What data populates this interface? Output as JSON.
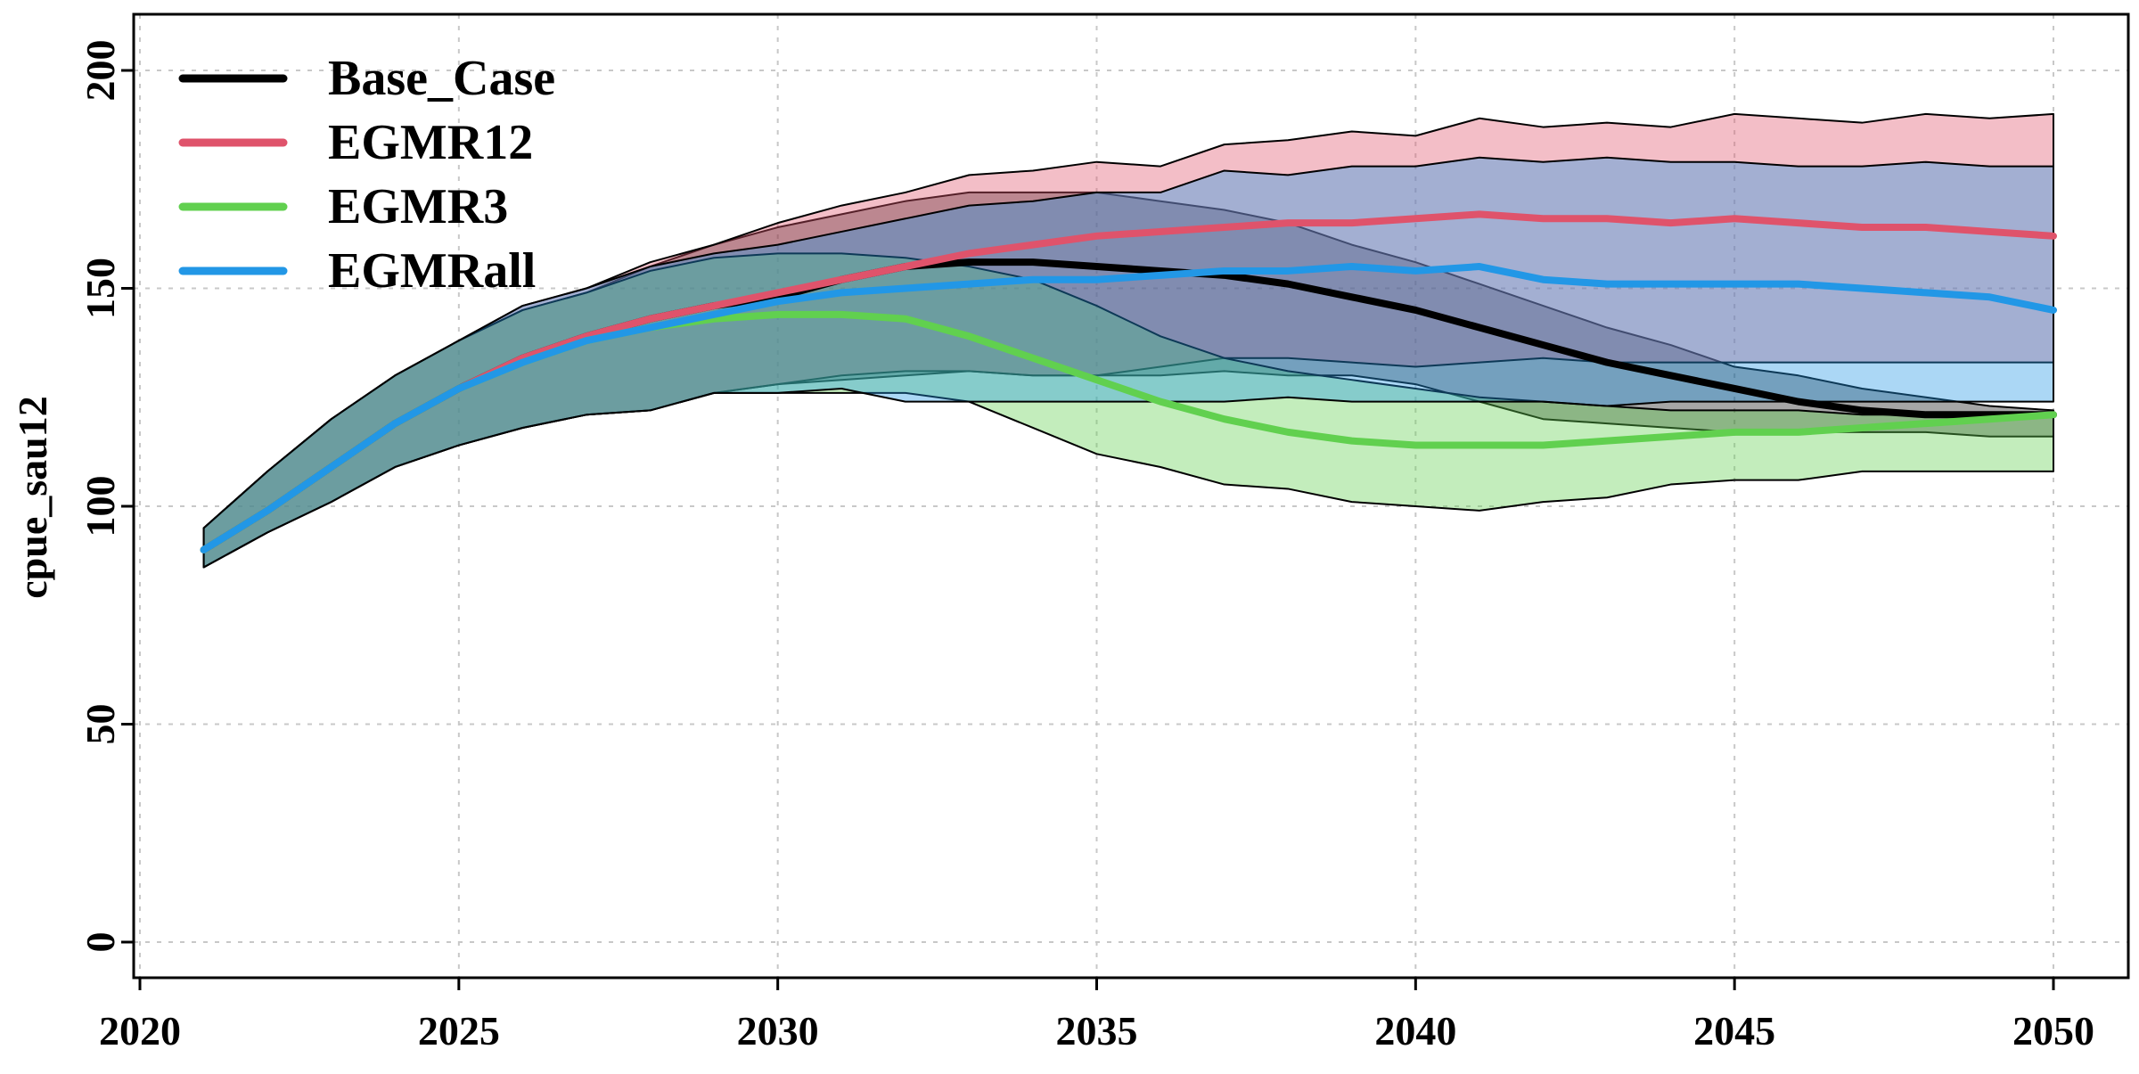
{
  "chart_data": {
    "type": "line",
    "title": "",
    "xlabel": "",
    "ylabel": "cpue_sau12",
    "xlim": [
      2020,
      2050
    ],
    "ylim": [
      0,
      200
    ],
    "xticks": [
      2020,
      2025,
      2030,
      2035,
      2040,
      2045,
      2050
    ],
    "yticks": [
      0,
      50,
      100,
      150,
      200
    ],
    "grid": true,
    "legend_position": "top-left",
    "x": [
      2021,
      2022,
      2023,
      2024,
      2025,
      2026,
      2027,
      2028,
      2029,
      2030,
      2031,
      2032,
      2033,
      2034,
      2035,
      2036,
      2037,
      2038,
      2039,
      2040,
      2041,
      2042,
      2043,
      2044,
      2045,
      2046,
      2047,
      2048,
      2049,
      2050
    ],
    "series": [
      {
        "name": "Base_Case",
        "color": "#000000",
        "band_color": "rgba(0,0,0,0.35)",
        "median": [
          90,
          99,
          109,
          119,
          127,
          134,
          139,
          143,
          146,
          148,
          152,
          155,
          156,
          156,
          155,
          154,
          153,
          151,
          148,
          145,
          141,
          137,
          133,
          130,
          127,
          124,
          122,
          121,
          121,
          121
        ],
        "lower": [
          86,
          94,
          101,
          109,
          114,
          118,
          121,
          122,
          126,
          128,
          129,
          130,
          131,
          130,
          130,
          130,
          131,
          130,
          130,
          128,
          124,
          120,
          119,
          118,
          117,
          117,
          117,
          117,
          116,
          116
        ],
        "upper": [
          95,
          108,
          120,
          130,
          138,
          145,
          149,
          155,
          160,
          164,
          167,
          170,
          172,
          172,
          172,
          170,
          168,
          165,
          160,
          156,
          151,
          146,
          141,
          137,
          132,
          130,
          127,
          125,
          123,
          122
        ]
      },
      {
        "name": "EGMR12",
        "color": "#DF536B",
        "band_color": "rgba(223,83,107,0.38)",
        "median": [
          90,
          99,
          109,
          119,
          127,
          134,
          139,
          143,
          146,
          149,
          152,
          155,
          158,
          160,
          162,
          163,
          164,
          165,
          165,
          166,
          167,
          166,
          166,
          165,
          166,
          165,
          164,
          164,
          163,
          162
        ],
        "lower": [
          86,
          94,
          101,
          109,
          114,
          118,
          121,
          122,
          126,
          128,
          130,
          131,
          131,
          130,
          130,
          132,
          134,
          134,
          133,
          132,
          133,
          134,
          133,
          133,
          133,
          133,
          133,
          133,
          133,
          133
        ],
        "upper": [
          95,
          108,
          120,
          130,
          138,
          146,
          150,
          156,
          160,
          165,
          169,
          172,
          176,
          177,
          179,
          178,
          183,
          184,
          186,
          185,
          189,
          187,
          188,
          187,
          190,
          189,
          188,
          190,
          189,
          190
        ]
      },
      {
        "name": "EGMR3",
        "color": "#61D04F",
        "band_color": "rgba(97,208,79,0.38)",
        "median": [
          90,
          99,
          109,
          119,
          127,
          133,
          138,
          141,
          143,
          144,
          144,
          143,
          139,
          134,
          129,
          124,
          120,
          117,
          115,
          114,
          114,
          114,
          115,
          116,
          117,
          117,
          118,
          119,
          120,
          121
        ],
        "lower": [
          86,
          94,
          101,
          109,
          114,
          118,
          121,
          122,
          126,
          126,
          126,
          126,
          124,
          118,
          112,
          109,
          105,
          104,
          101,
          100,
          99,
          101,
          102,
          105,
          106,
          106,
          108,
          108,
          108,
          108
        ],
        "upper": [
          95,
          108,
          120,
          130,
          138,
          145,
          149,
          154,
          157,
          158,
          158,
          157,
          155,
          152,
          146,
          139,
          134,
          131,
          129,
          127,
          125,
          124,
          123,
          122,
          122,
          122,
          121,
          121,
          121,
          121
        ]
      },
      {
        "name": "EGMRall",
        "color": "#2297E6",
        "band_color": "rgba(34,151,230,0.38)",
        "median": [
          90,
          99,
          109,
          119,
          127,
          133,
          138,
          141,
          144,
          147,
          149,
          150,
          151,
          152,
          152,
          153,
          154,
          154,
          155,
          154,
          155,
          152,
          151,
          151,
          151,
          151,
          150,
          149,
          148,
          145
        ],
        "lower": [
          86,
          94,
          101,
          109,
          114,
          118,
          121,
          122,
          126,
          126,
          127,
          124,
          124,
          124,
          124,
          124,
          124,
          125,
          124,
          124,
          124,
          124,
          123,
          124,
          124,
          124,
          124,
          124,
          124,
          124
        ],
        "upper": [
          95,
          108,
          120,
          130,
          138,
          146,
          150,
          155,
          158,
          160,
          163,
          166,
          169,
          170,
          172,
          172,
          177,
          176,
          178,
          178,
          180,
          179,
          180,
          179,
          179,
          178,
          178,
          179,
          178,
          178
        ]
      }
    ]
  }
}
